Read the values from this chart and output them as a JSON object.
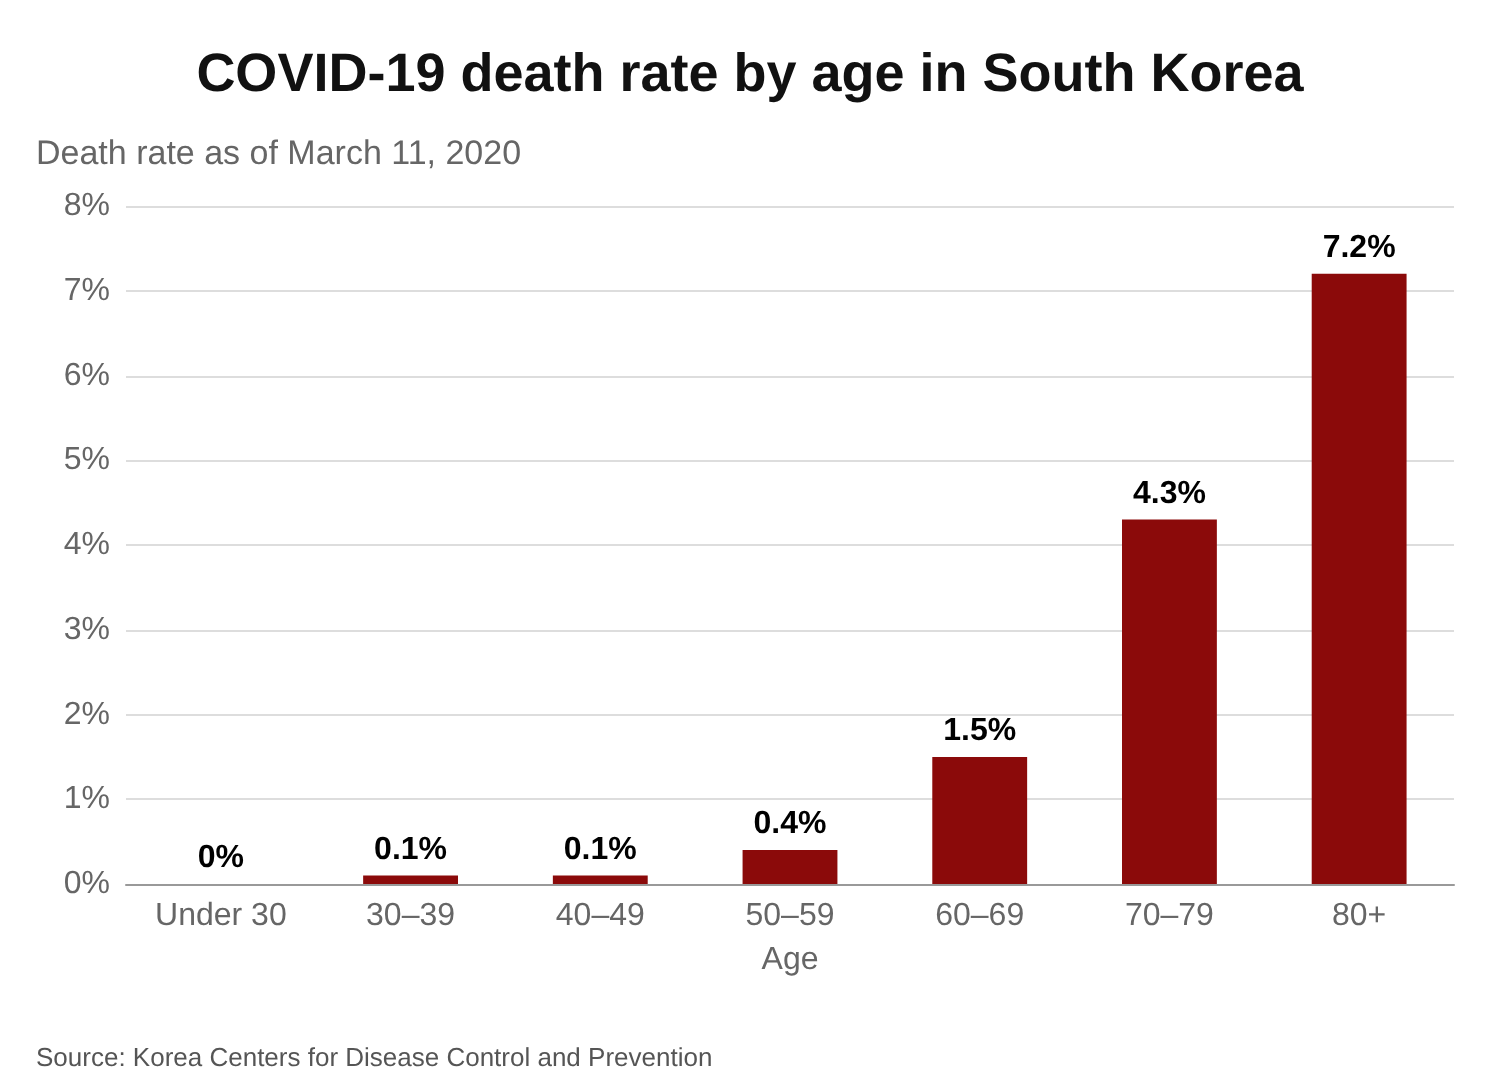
{
  "chart_data": {
    "type": "bar",
    "title": "COVID-19 death rate by age in South Korea",
    "ylabel": "Death rate as of March 11, 2020",
    "xlabel": "Age",
    "categories": [
      "Under 30",
      "30–39",
      "40–49",
      "50–59",
      "60–69",
      "70–79",
      "80+"
    ],
    "values": [
      0,
      0.1,
      0.1,
      0.4,
      1.5,
      4.3,
      7.2
    ],
    "value_labels": [
      "0%",
      "0.1%",
      "0.1%",
      "0.4%",
      "1.5%",
      "4.3%",
      "7.2%"
    ],
    "color": "#8b0a0a",
    "ylim": [
      0,
      8
    ],
    "yticks": [
      {
        "value": 0,
        "label": "0%"
      },
      {
        "value": 1,
        "label": "1%"
      },
      {
        "value": 2,
        "label": "2%"
      },
      {
        "value": 3,
        "label": "3%"
      },
      {
        "value": 4,
        "label": "4%"
      },
      {
        "value": 5,
        "label": "5%"
      },
      {
        "value": 6,
        "label": "6%"
      },
      {
        "value": 7,
        "label": "7%"
      },
      {
        "value": 8,
        "label": "8%"
      }
    ],
    "grid": "y",
    "annotations": [
      "Source: Korea Centers for Disease Control and Prevention"
    ]
  }
}
